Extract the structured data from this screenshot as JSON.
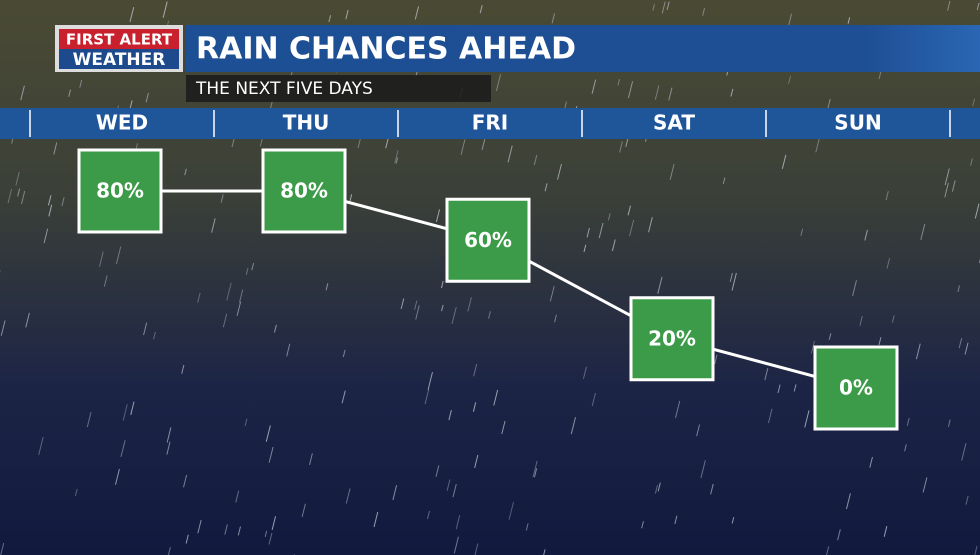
{
  "brand": {
    "line1": "FIRST ALERT",
    "line2": "WEATHER"
  },
  "chart_data": {
    "type": "line",
    "title": "RAIN CHANCES AHEAD",
    "subtitle": "THE NEXT FIVE DAYS",
    "categories": [
      "WED",
      "THU",
      "FRI",
      "SAT",
      "SUN"
    ],
    "values": [
      80,
      80,
      60,
      20,
      0
    ],
    "value_labels": [
      "80%",
      "80%",
      "60%",
      "20%",
      "0%"
    ],
    "color": "#3c9b48",
    "line_color": "#ffffff"
  }
}
